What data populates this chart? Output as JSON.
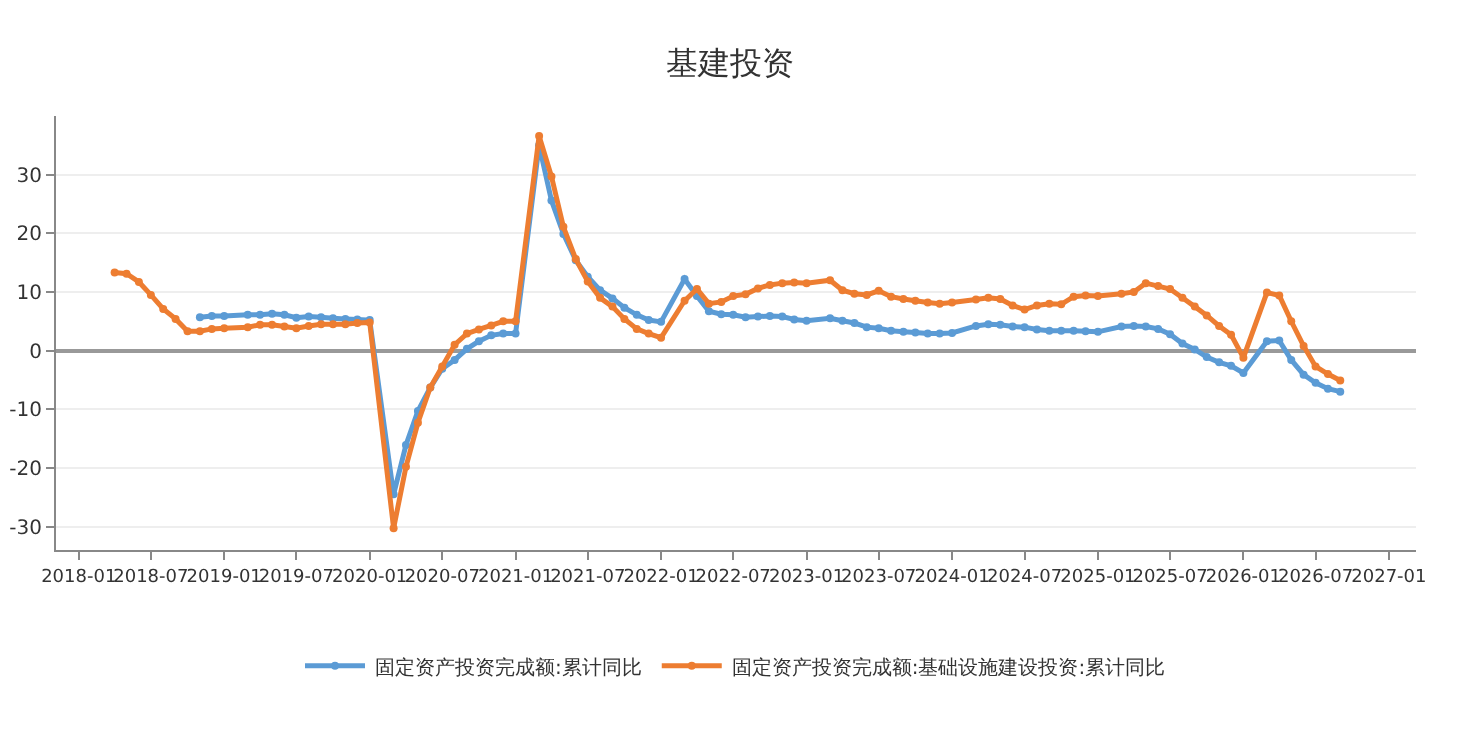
{
  "chart_data": {
    "type": "line",
    "title": "基建投资",
    "marker": "circle",
    "line_style": "solid",
    "grid": "y",
    "legend": "bottom",
    "xlim": [
      "2017-11-05",
      "2027-03-10"
    ],
    "xticks": [
      "2018-01",
      "2018-07",
      "2019-01",
      "2019-07",
      "2020-01",
      "2020-07",
      "2021-01",
      "2021-07",
      "2022-01",
      "2022-07",
      "2023-01",
      "2023-07",
      "2024-01",
      "2024-07",
      "2025-01",
      "2025-07",
      "2026-01",
      "2026-07",
      "2027-01"
    ],
    "ylim": [
      -34,
      40
    ],
    "yticks": [
      -30,
      -20,
      -10,
      0,
      10,
      20,
      30
    ],
    "series": [
      {
        "name": "固定资产投资完成额:累计同比",
        "color": "#5b9bd5",
        "x": [
          "2018-11",
          "2018-12",
          "2019-01",
          "2019-03",
          "2019-04",
          "2019-05",
          "2019-06",
          "2019-07",
          "2019-08",
          "2019-09",
          "2019-10",
          "2019-11",
          "2019-12",
          "2020-01",
          "2020-03",
          "2020-04",
          "2020-05",
          "2020-06",
          "2020-07",
          "2020-08",
          "2020-09",
          "2020-10",
          "2020-11",
          "2020-12",
          "2021-01",
          "2021-03",
          "2021-04",
          "2021-05",
          "2021-06",
          "2021-07",
          "2021-08",
          "2021-09",
          "2021-10",
          "2021-11",
          "2021-12",
          "2022-01",
          "2022-03",
          "2022-04",
          "2022-05",
          "2022-06",
          "2022-07",
          "2022-08",
          "2022-09",
          "2022-10",
          "2022-11",
          "2022-12",
          "2023-01",
          "2023-03",
          "2023-04",
          "2023-05",
          "2023-06",
          "2023-07",
          "2023-08",
          "2023-09",
          "2023-10",
          "2023-11",
          "2023-12",
          "2024-01",
          "2024-03",
          "2024-04",
          "2024-05",
          "2024-06",
          "2024-07",
          "2024-08",
          "2024-09",
          "2024-10",
          "2024-11",
          "2024-12",
          "2025-01",
          "2025-03",
          "2025-04",
          "2025-05",
          "2025-06",
          "2025-07",
          "2025-08",
          "2025-09",
          "2025-10",
          "2025-11",
          "2025-12",
          "2026-01",
          "2026-03",
          "2026-04",
          "2026-05",
          "2026-06",
          "2026-07",
          "2026-08",
          "2026-09"
        ],
        "values": [
          5.7,
          5.9,
          5.9,
          6.1,
          6.1,
          6.3,
          6.1,
          5.6,
          5.8,
          5.7,
          5.5,
          5.4,
          5.3,
          5.2,
          -24.5,
          -16.1,
          -10.3,
          -6.3,
          -3.1,
          -1.6,
          0.3,
          1.6,
          2.6,
          2.9,
          2.9,
          35.0,
          25.6,
          19.9,
          15.4,
          12.6,
          10.3,
          8.9,
          7.3,
          6.1,
          5.2,
          4.9,
          12.2,
          9.3,
          6.7,
          6.2,
          6.1,
          5.7,
          5.8,
          5.9,
          5.8,
          5.3,
          5.1,
          5.5,
          5.1,
          4.7,
          4.0,
          3.8,
          3.4,
          3.2,
          3.1,
          2.9,
          2.9,
          3.0,
          4.2,
          4.5,
          4.4,
          4.1,
          4.0,
          3.6,
          3.4,
          3.4,
          3.4,
          3.3,
          3.2,
          4.1,
          4.2,
          4.1,
          3.7,
          2.8,
          1.2,
          0.2,
          -1.1,
          -2.0,
          -2.6,
          -3.8,
          1.6,
          1.7,
          -1.6,
          -4.1,
          -5.5,
          -6.5,
          -7.0
        ]
      },
      {
        "name": "固定资产投资完成额:基础设施建设投资:累计同比",
        "color": "#ed7d31",
        "x": [
          "2018-04",
          "2018-05",
          "2018-06",
          "2018-07",
          "2018-08",
          "2018-09",
          "2018-10",
          "2018-11",
          "2018-12",
          "2019-01",
          "2019-03",
          "2019-04",
          "2019-05",
          "2019-06",
          "2019-07",
          "2019-08",
          "2019-09",
          "2019-10",
          "2019-11",
          "2019-12",
          "2020-01",
          "2020-03",
          "2020-04",
          "2020-05",
          "2020-06",
          "2020-07",
          "2020-08",
          "2020-09",
          "2020-10",
          "2020-11",
          "2020-12",
          "2021-01",
          "2021-03",
          "2021-04",
          "2021-05",
          "2021-06",
          "2021-07",
          "2021-08",
          "2021-09",
          "2021-10",
          "2021-11",
          "2021-12",
          "2022-01",
          "2022-03",
          "2022-04",
          "2022-05",
          "2022-06",
          "2022-07",
          "2022-08",
          "2022-09",
          "2022-10",
          "2022-11",
          "2022-12",
          "2023-01",
          "2023-03",
          "2023-04",
          "2023-05",
          "2023-06",
          "2023-07",
          "2023-08",
          "2023-09",
          "2023-10",
          "2023-11",
          "2023-12",
          "2024-01",
          "2024-03",
          "2024-04",
          "2024-05",
          "2024-06",
          "2024-07",
          "2024-08",
          "2024-09",
          "2024-10",
          "2024-11",
          "2024-12",
          "2025-01",
          "2025-03",
          "2025-04",
          "2025-05",
          "2025-06",
          "2025-07",
          "2025-08",
          "2025-09",
          "2025-10",
          "2025-11",
          "2025-12",
          "2026-01",
          "2026-03",
          "2026-04",
          "2026-05",
          "2026-06",
          "2026-07",
          "2026-08",
          "2026-09"
        ],
        "values": [
          13.3,
          13.1,
          11.7,
          9.5,
          7.1,
          5.4,
          3.3,
          3.3,
          3.7,
          3.8,
          4.0,
          4.4,
          4.4,
          4.1,
          3.8,
          4.2,
          4.5,
          4.5,
          4.5,
          4.7,
          4.8,
          -30.3,
          -19.8,
          -12.3,
          -6.3,
          -2.7,
          1.0,
          2.9,
          3.6,
          4.3,
          5.0,
          5.0,
          36.6,
          29.7,
          21.1,
          15.6,
          11.8,
          9.0,
          7.5,
          5.4,
          3.7,
          2.9,
          2.2,
          8.5,
          10.5,
          8.0,
          8.3,
          9.3,
          9.6,
          10.6,
          11.2,
          11.5,
          11.6,
          11.5,
          12.0,
          10.3,
          9.7,
          9.5,
          10.2,
          9.2,
          8.8,
          8.5,
          8.2,
          8.0,
          8.2,
          8.7,
          9.0,
          8.8,
          7.7,
          7.0,
          7.7,
          8.0,
          7.9,
          9.2,
          9.4,
          9.3,
          9.7,
          10.0,
          11.5,
          11.0,
          10.5,
          9.0,
          7.5,
          6.0,
          4.2,
          2.7,
          -1.2,
          9.9,
          9.4,
          5.0,
          0.8,
          -2.7,
          -4.0,
          -5.1
        ]
      }
    ]
  }
}
